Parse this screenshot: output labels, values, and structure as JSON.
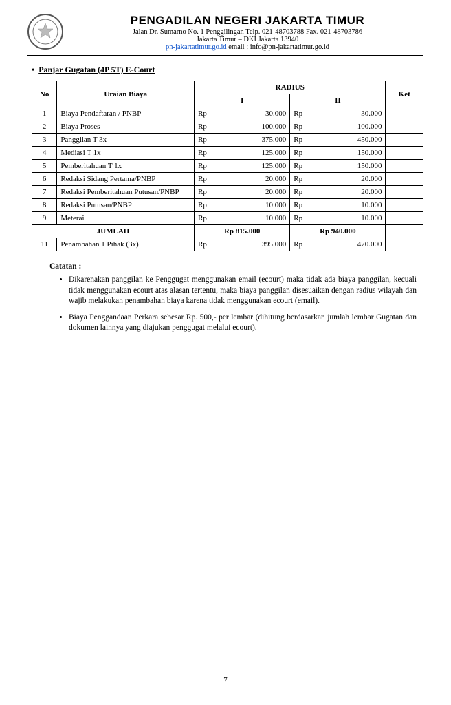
{
  "header": {
    "title": "PENGADILAN NEGERI JAKARTA TIMUR",
    "address_line1": "Jalan Dr. Sumarno  No. 1  Penggilingan Telp. 021-48703788 Fax. 021-48703786",
    "address_line2": "Jakarta Timur – DKI Jakarta 13940",
    "website": "pn-jakartatimur.go.id",
    "email_label": " email : info@pn-jakartatimur.go.id"
  },
  "section": {
    "bullet": "•",
    "title": "Panjar Gugatan  (4P 5T) E-Court"
  },
  "table": {
    "head": {
      "no": "No",
      "uraian": "Uraian Biaya",
      "radius": "RADIUS",
      "r1": "I",
      "r2": "II",
      "ket": "Ket"
    },
    "rows": [
      {
        "no": "1",
        "desc": "Biaya Pendaftaran / PNBP",
        "rp1": "Rp",
        "v1": "30.000",
        "rp2": "Rp",
        "v2": "30.000"
      },
      {
        "no": "2",
        "desc": "Biaya Proses",
        "rp1": "Rp",
        "v1": "100.000",
        "rp2": "Rp",
        "v2": "100.000"
      },
      {
        "no": "3",
        "desc": "Panggilan T 3x",
        "rp1": "Rp",
        "v1": "375.000",
        "rp2": "Rp",
        "v2": "450.000"
      },
      {
        "no": "4",
        "desc": "Mediasi  T 1x",
        "rp1": "Rp",
        "v1": "125.000",
        "rp2": "Rp",
        "v2": "150.000"
      },
      {
        "no": "5",
        "desc": "Pemberitahuan  T 1x",
        "rp1": "Rp",
        "v1": "125.000",
        "rp2": "Rp",
        "v2": "150.000"
      },
      {
        "no": "6",
        "desc": "Redaksi Sidang Pertama/PNBP",
        "rp1": "Rp",
        "v1": "20.000",
        "rp2": "Rp",
        "v2": "20.000"
      },
      {
        "no": "7",
        "desc": "Redaksi Pemberitahuan Putusan/PNBP",
        "rp1": "Rp",
        "v1": "20.000",
        "rp2": "Rp",
        "v2": "20.000"
      },
      {
        "no": "8",
        "desc": "Redaksi Putusan/PNBP",
        "rp1": "Rp",
        "v1": "10.000",
        "rp2": "Rp",
        "v2": "10.000"
      },
      {
        "no": "9",
        "desc": "Meterai",
        "rp1": "Rp",
        "v1": "10.000",
        "rp2": "Rp",
        "v2": "10.000"
      }
    ],
    "jumlah": {
      "label": "JUMLAH",
      "v1": "Rp 815.000",
      "v2": "Rp 940.000"
    },
    "extra": {
      "no": "11",
      "desc": "Penambahan 1 Pihak (3x)",
      "rp1": "Rp",
      "v1": "395.000",
      "rp2": "Rp",
      "v2": "470.000"
    }
  },
  "notes": {
    "title": "Catatan :",
    "items": [
      "Dikarenakan panggilan ke Penggugat menggunakan email (ecourt) maka tidak ada biaya panggilan, kecuali tidak menggunakan ecourt atas alasan tertentu, maka biaya panggilan disesuaikan dengan radius wilayah dan wajib melakukan penambahan biaya karena tidak menggunakan ecourt (email).",
      "Biaya Penggandaan Perkara sebesar Rp. 500,- per lembar (dihitung berdasarkan jumlah lembar Gugatan dan dokumen lainnya yang diajukan penggugat melalui ecourt)."
    ]
  },
  "page_number": "7"
}
